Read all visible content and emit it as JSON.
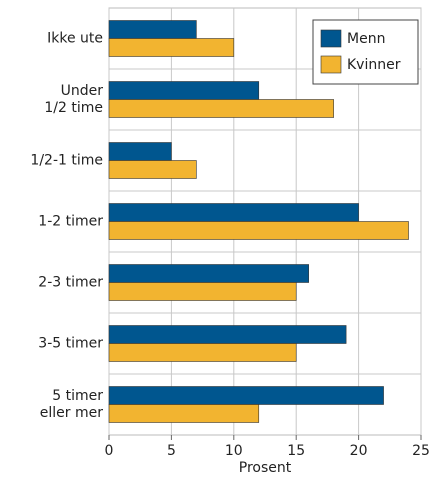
{
  "chart_data": {
    "type": "barh",
    "categories": [
      "Ikke ute",
      "Under\n1/2 time",
      "1/2-1 time",
      "1-2 timer",
      "2-3 timer",
      "3-5 timer",
      "5 timer\neller mer"
    ],
    "series": [
      {
        "name": "Menn",
        "color": "#00568f",
        "values": [
          7,
          12,
          5,
          20,
          16,
          19,
          22
        ]
      },
      {
        "name": "Kvinner",
        "color": "#f2b430",
        "values": [
          10,
          18,
          7,
          24,
          15,
          15,
          12
        ]
      }
    ],
    "xlim": [
      0,
      25
    ],
    "xticks": [
      0,
      5,
      10,
      15,
      20,
      25
    ],
    "xlabel": "Prosent",
    "grid": true,
    "legend": "top-right"
  }
}
